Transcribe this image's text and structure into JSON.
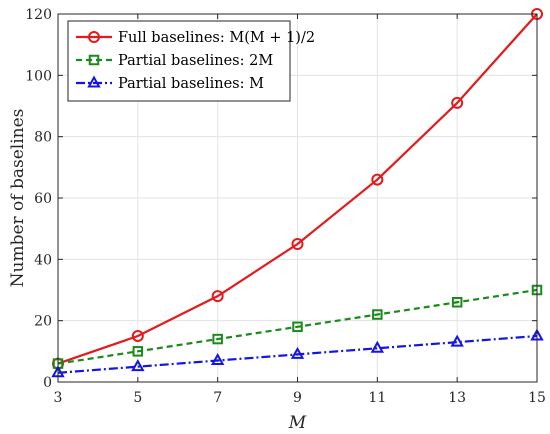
{
  "chart_data": {
    "type": "line",
    "xlabel": "M",
    "ylabel": "Number of baselines",
    "xlim": [
      3,
      15
    ],
    "ylim": [
      0,
      120
    ],
    "x_ticks": [
      3,
      5,
      7,
      9,
      11,
      13,
      15
    ],
    "y_ticks": [
      0,
      20,
      40,
      60,
      80,
      100,
      120
    ],
    "grid": true,
    "legend_position": "top-left",
    "x": [
      3,
      5,
      7,
      9,
      11,
      13,
      15
    ],
    "series": [
      {
        "name": "Full baselines: M(M + 1)/2",
        "values": [
          6,
          15,
          28,
          45,
          66,
          91,
          120
        ],
        "color": "#e41a1c",
        "marker": "circle",
        "dash": "solid"
      },
      {
        "name": "Partial baselines: 2M",
        "values": [
          6,
          10,
          14,
          18,
          22,
          26,
          30
        ],
        "color": "#1a8a1a",
        "marker": "square",
        "dash": "dashed"
      },
      {
        "name": "Partial baselines: M",
        "values": [
          3,
          5,
          7,
          9,
          11,
          13,
          15
        ],
        "color": "#1414e6",
        "marker": "triangle",
        "dash": "dashdot"
      }
    ]
  }
}
